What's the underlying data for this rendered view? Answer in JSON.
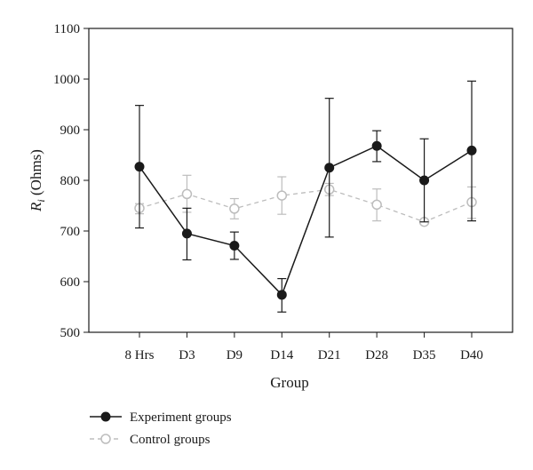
{
  "chart_data": {
    "type": "line",
    "xlabel": "Group",
    "ylabel_main": "R",
    "ylabel_sub": "i",
    "ylabel_unit": " (Ohms)",
    "categories": [
      "8 Hrs",
      "D3",
      "D9",
      "D14",
      "D21",
      "D28",
      "D35",
      "D40"
    ],
    "ylim": [
      500,
      1100
    ],
    "yticks": [
      500,
      600,
      700,
      800,
      900,
      1000,
      1100
    ],
    "grid": false,
    "legend_position": "bottom-left",
    "series": [
      {
        "name": "Experiment groups",
        "color": "#1a1a1a",
        "marker": "filled-circle",
        "line_style": "solid",
        "values": [
          827,
          695,
          671,
          574,
          825,
          868,
          800,
          859
        ],
        "error_upper": [
          948,
          745,
          698,
          606,
          962,
          898,
          882,
          996
        ],
        "error_lower": [
          706,
          643,
          644,
          540,
          688,
          837,
          718,
          720
        ]
      },
      {
        "name": "Control groups",
        "color": "#bdbdbd",
        "marker": "open-circle",
        "line_style": "dashed",
        "values": [
          745,
          773,
          744,
          770,
          782,
          752,
          718,
          757
        ],
        "error_upper": [
          754,
          810,
          764,
          807,
          794,
          783,
          722,
          787
        ],
        "error_lower": [
          734,
          737,
          724,
          733,
          770,
          720,
          714,
          725
        ]
      }
    ]
  }
}
